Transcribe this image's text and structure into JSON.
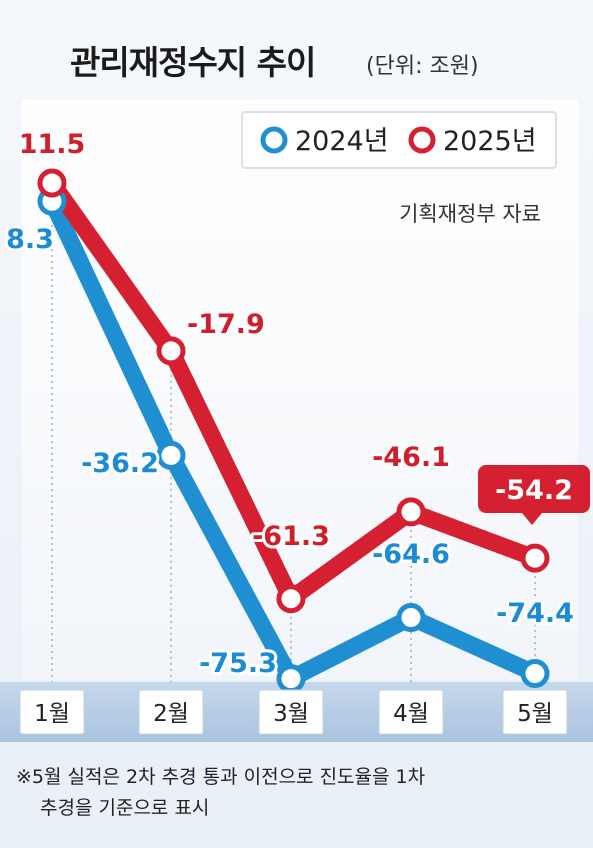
{
  "header": {
    "title": "관리재정수지 추이",
    "unit": "(단위: 조원)"
  },
  "source": "기획재정부 자료",
  "footnote": {
    "line1": "※5월 실적은 2차 추경 통과 이전으로 진도율을 1차",
    "line2": "추경을 기준으로 표시"
  },
  "colors": {
    "series_2024": "#1f8fd1",
    "series_2025": "#d42030",
    "label_2024": "#1a8cd6",
    "label_2025": "#d01f2c"
  },
  "chart_data": {
    "type": "line",
    "title": "관리재정수지 추이",
    "unit": "(단위: 조원)",
    "categories": [
      "1월",
      "2월",
      "3월",
      "4월",
      "5월"
    ],
    "series": [
      {
        "name": "2024년",
        "values": [
          8.3,
          -36.2,
          -75.3,
          -64.6,
          -74.4
        ],
        "labels": [
          "8.3",
          "-36.2",
          "-75.3",
          "-64.6",
          "-74.4"
        ]
      },
      {
        "name": "2025년",
        "values": [
          11.5,
          -17.9,
          -61.3,
          -46.1,
          -54.2
        ],
        "labels": [
          "11.5",
          "-17.9",
          "-61.3",
          "-46.1",
          "-54.2"
        ]
      }
    ],
    "legend_position": "top-right",
    "grid": false,
    "highlighted_point": {
      "series": "2025년",
      "category": "5월"
    }
  }
}
